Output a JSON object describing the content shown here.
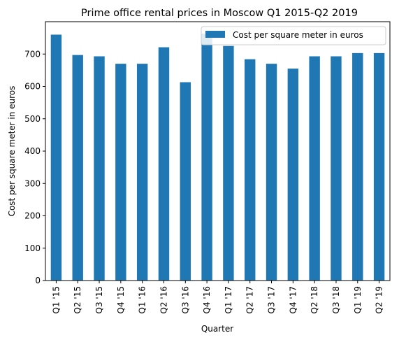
{
  "chart_data": {
    "type": "bar",
    "title": "Prime office rental prices in Moscow Q1 2015-Q2 2019",
    "xlabel": "Quarter",
    "ylabel": "Cost per square meter in euros",
    "categories": [
      "Q1 '15",
      "Q2 '15",
      "Q3 '15",
      "Q4 '15",
      "Q1 '16",
      "Q2 '16",
      "Q3 '16",
      "Q4 '16",
      "Q1 '17",
      "Q2 '17",
      "Q3 '17",
      "Q4 '17",
      "Q2 '18",
      "Q3 '18",
      "Q1 '19",
      "Q2 '19"
    ],
    "series": [
      {
        "name": "Cost per square meter in euros",
        "color": "#1f77b4",
        "values": [
          760,
          697,
          693,
          670,
          670,
          721,
          613,
          763,
          725,
          684,
          670,
          655,
          693,
          693,
          703,
          703
        ]
      }
    ],
    "ylim": [
      0,
      800
    ],
    "yticks": [
      0,
      100,
      200,
      300,
      400,
      500,
      600,
      700
    ],
    "grid": false,
    "legend_position": "top-right"
  }
}
